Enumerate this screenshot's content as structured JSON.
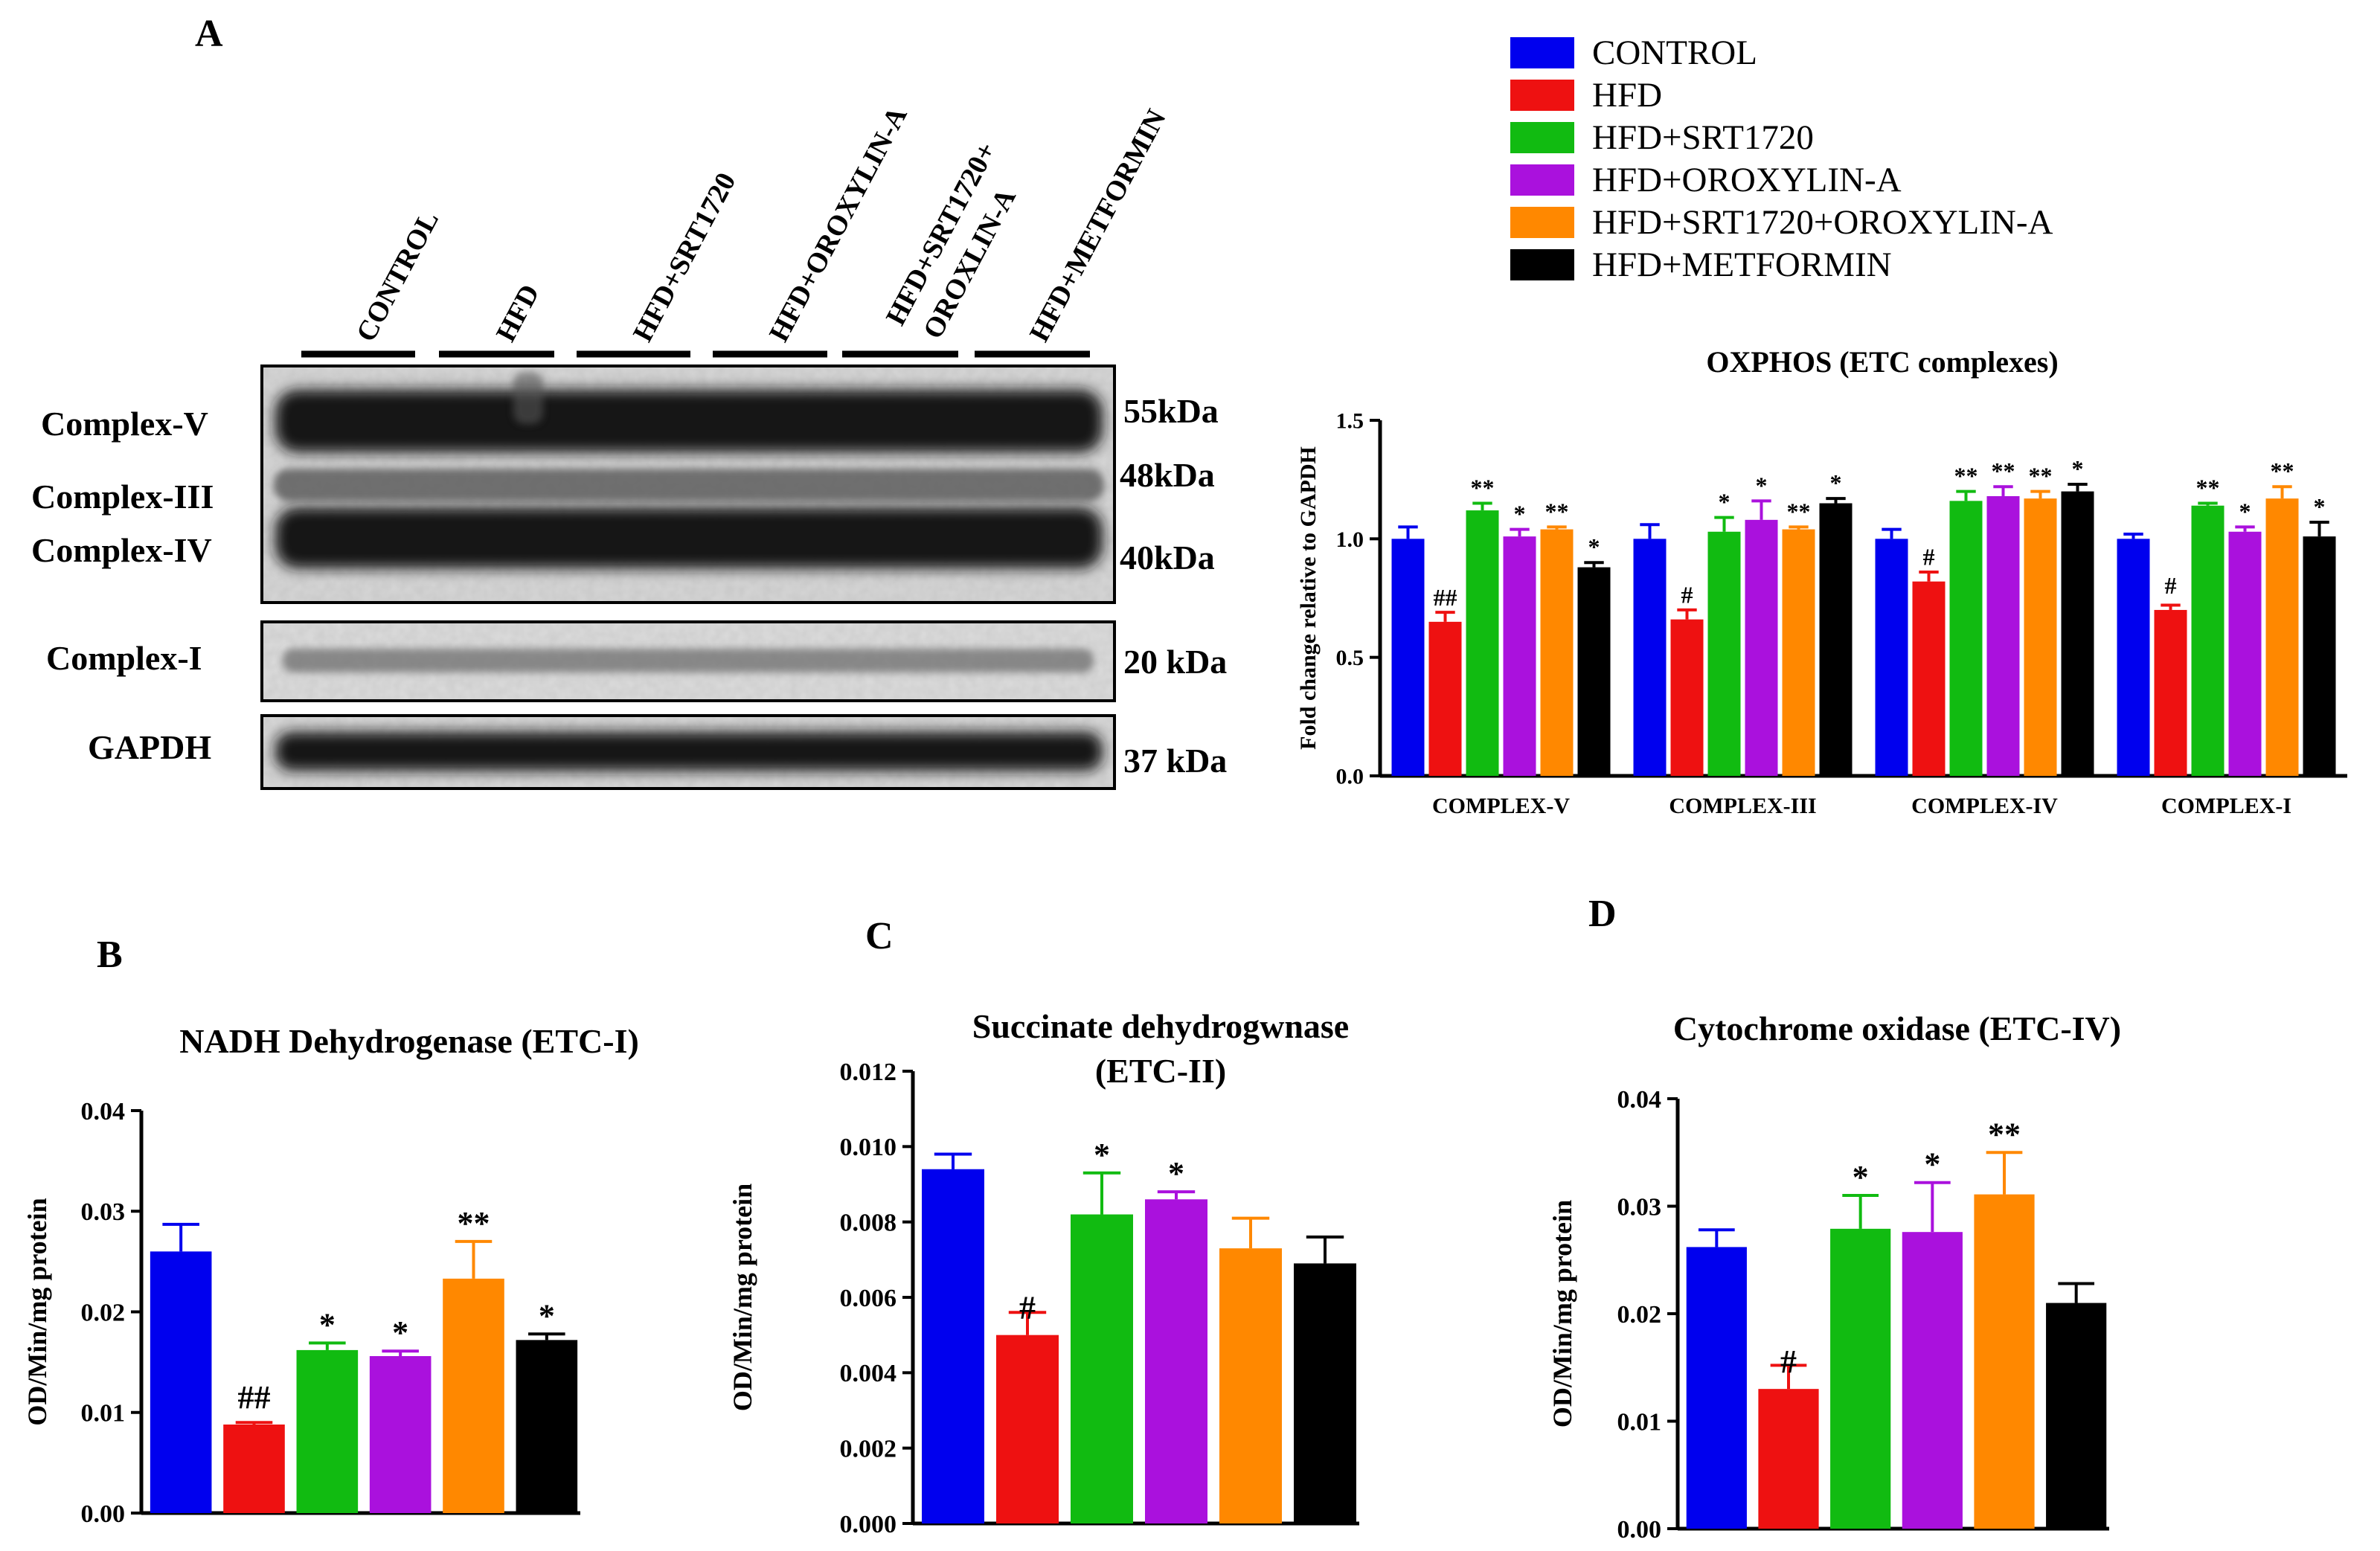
{
  "panel_labels": {
    "a": "A",
    "b": "B",
    "c": "C",
    "d": "D"
  },
  "blot": {
    "lane_labels": [
      "CONTROL",
      "HFD",
      "HFD+SRT1720",
      "HFD+OROXYLIN-A",
      "HFD+SRT1720+",
      "OROXLIN-A",
      "HFD+METFORMIN"
    ],
    "row_labels": {
      "complex_v": "Complex-V",
      "complex_iii": "Complex-III",
      "complex_iv": "Complex-IV",
      "complex_i": "Complex-I",
      "gapdh": "GAPDH"
    },
    "kda_labels": {
      "v": "55kDa",
      "iii": "48kDa",
      "iv": "40kDa",
      "i": "20 kDa",
      "gapdh": "37 kDa"
    }
  },
  "legend": {
    "items": [
      {
        "label": "CONTROL",
        "color": "#0000ee"
      },
      {
        "label": "HFD",
        "color": "#ee1111"
      },
      {
        "label": "HFD+SRT1720",
        "color": "#11bb11"
      },
      {
        "label": "HFD+OROXYLIN-A",
        "color": "#aa11dd"
      },
      {
        "label": "HFD+SRT1720+OROXYLIN-A",
        "color": "#ff8800"
      },
      {
        "label": "HFD+METFORMIN",
        "color": "#000000"
      }
    ]
  },
  "chart_data": [
    {
      "id": "oxphos",
      "type": "bar",
      "title": "OXPHOS (ETC complexes)",
      "ylabel": "Fold change relative to GAPDH",
      "xlabel": "",
      "ylim": [
        0,
        1.5
      ],
      "yticks": [
        "0.0",
        "0.5",
        "1.0",
        "1.5"
      ],
      "categories": [
        "COMPLEX-V",
        "COMPLEX-III",
        "COMPLEX-IV",
        "COMPLEX-I"
      ],
      "series": [
        {
          "name": "CONTROL",
          "values": [
            1.0,
            1.0,
            1.0,
            1.0
          ],
          "errors": [
            0.05,
            0.06,
            0.04,
            0.02
          ],
          "marks": [
            "",
            "",
            "",
            ""
          ]
        },
        {
          "name": "HFD",
          "values": [
            0.65,
            0.66,
            0.82,
            0.7
          ],
          "errors": [
            0.04,
            0.04,
            0.04,
            0.02
          ],
          "marks": [
            "##",
            "#",
            "#",
            "#"
          ]
        },
        {
          "name": "HFD+SRT1720",
          "values": [
            1.12,
            1.03,
            1.16,
            1.14
          ],
          "errors": [
            0.03,
            0.06,
            0.04,
            0.01
          ],
          "marks": [
            "**",
            "*",
            "**",
            "**"
          ]
        },
        {
          "name": "HFD+OROXYLIN-A",
          "values": [
            1.01,
            1.08,
            1.18,
            1.03
          ],
          "errors": [
            0.03,
            0.08,
            0.04,
            0.02
          ],
          "marks": [
            "*",
            "*",
            "**",
            "*"
          ]
        },
        {
          "name": "HFD+SRT1720+OROXYLIN-A",
          "values": [
            1.04,
            1.04,
            1.17,
            1.17
          ],
          "errors": [
            0.01,
            0.01,
            0.03,
            0.05
          ],
          "marks": [
            "**",
            "**",
            "**",
            "**"
          ]
        },
        {
          "name": "HFD+METFORMIN",
          "values": [
            0.88,
            1.15,
            1.2,
            1.01
          ],
          "errors": [
            0.02,
            0.02,
            0.03,
            0.06
          ],
          "marks": [
            "*",
            "*",
            "*",
            "*"
          ]
        }
      ]
    },
    {
      "id": "nadh",
      "type": "bar",
      "title": "NADH Dehydrogenase (ETC-I)",
      "ylabel": "OD/Min/mg protein",
      "xlabel": "",
      "ylim": [
        0,
        0.04
      ],
      "yticks": [
        "0.00",
        "0.01",
        "0.02",
        "0.03",
        "0.04"
      ],
      "categories": [
        "CONTROL",
        "HFD",
        "HFD+SRT1720",
        "HFD+OROXYLIN-A",
        "HFD+SRT1720+OROXYLIN-A",
        "HFD+METFORMIN"
      ],
      "values": [
        0.026,
        0.0088,
        0.0162,
        0.0156,
        0.0233,
        0.0172
      ],
      "errors": [
        0.0027,
        0.0002,
        0.0007,
        0.0005,
        0.0037,
        0.0006
      ],
      "marks": [
        "",
        "##",
        "*",
        "*",
        "**",
        "*"
      ]
    },
    {
      "id": "sdh",
      "type": "bar",
      "title": "Succinate dehydrogwnase (ETC-II)",
      "title_lines": [
        "Succinate dehydrogwnase",
        "(ETC-II)"
      ],
      "ylabel": "OD/Min/mg protein",
      "xlabel": "",
      "ylim": [
        0,
        0.012
      ],
      "yticks": [
        "0.000",
        "0.002",
        "0.004",
        "0.006",
        "0.008",
        "0.010",
        "0.012"
      ],
      "categories": [
        "CONTROL",
        "HFD",
        "HFD+SRT1720",
        "HFD+OROXYLIN-A",
        "HFD+SRT1720+OROXYLIN-A",
        "HFD+METFORMIN"
      ],
      "values": [
        0.0094,
        0.005,
        0.0082,
        0.0086,
        0.0073,
        0.0069
      ],
      "errors": [
        0.0004,
        0.0006,
        0.0011,
        0.0002,
        0.0008,
        0.0007
      ],
      "marks": [
        "",
        "#",
        "*",
        "*",
        "",
        ""
      ]
    },
    {
      "id": "cox",
      "type": "bar",
      "title": "Cytochrome oxidase (ETC-IV)",
      "ylabel": "OD/Min/mg protein",
      "xlabel": "",
      "ylim": [
        0,
        0.04
      ],
      "yticks": [
        "0.00",
        "0.01",
        "0.02",
        "0.03",
        "0.04"
      ],
      "categories": [
        "CONTROL",
        "HFD",
        "HFD+SRT1720",
        "HFD+OROXYLIN-A",
        "HFD+SRT1720+OROXYLIN-A",
        "HFD+METFORMIN"
      ],
      "values": [
        0.0262,
        0.013,
        0.0279,
        0.0276,
        0.0311,
        0.021
      ],
      "errors": [
        0.0016,
        0.0022,
        0.0031,
        0.0046,
        0.0039,
        0.0018
      ],
      "marks": [
        "",
        "#",
        "*",
        "*",
        "**",
        ""
      ]
    }
  ]
}
